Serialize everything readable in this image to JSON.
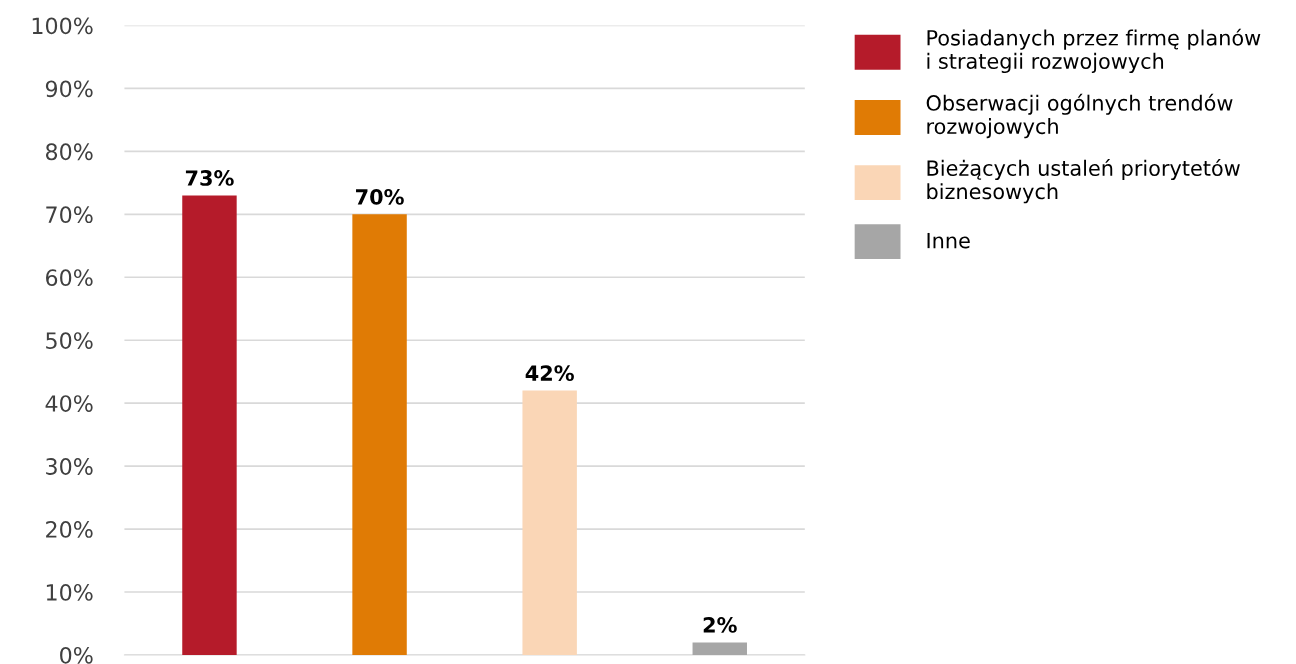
{
  "chart_data": {
    "type": "bar",
    "categories": [
      null,
      null,
      null,
      null
    ],
    "series": [
      {
        "name": "Posiadanych przez firmę planów\ni strategii rozwojowych",
        "color": "#b51b2a",
        "values": [
          73,
          null,
          null,
          null
        ],
        "value_labels": [
          "73%",
          null,
          null,
          null
        ]
      },
      {
        "name": "Obserwacji ogólnych trendów\nrozwojowych",
        "color": "#e07b05",
        "values": [
          null,
          70,
          null,
          null
        ],
        "value_labels": [
          null,
          "70%",
          null,
          null
        ]
      },
      {
        "name": "Bieżących ustaleń priorytetów\nbiznesowych",
        "color": "#fad6b6",
        "values": [
          null,
          null,
          42,
          null
        ],
        "value_labels": [
          null,
          null,
          "42%",
          null
        ]
      },
      {
        "name": "Inne",
        "color": "#a6a6a6",
        "values": [
          null,
          null,
          null,
          2
        ],
        "value_labels": [
          null,
          null,
          null,
          "2%"
        ]
      }
    ],
    "ylim": [
      0,
      100
    ],
    "yticks": [
      {
        "value": 0,
        "label": "0%"
      },
      {
        "value": 10,
        "label": "10%"
      },
      {
        "value": 20,
        "label": "20%"
      },
      {
        "value": 30,
        "label": "30%"
      },
      {
        "value": 40,
        "label": "40%"
      },
      {
        "value": 50,
        "label": "50%"
      },
      {
        "value": 60,
        "label": "60%"
      },
      {
        "value": 70,
        "label": "70%"
      },
      {
        "value": 80,
        "label": "80%"
      },
      {
        "value": 90,
        "label": "90%"
      },
      {
        "value": 100,
        "label": "100%"
      }
    ],
    "grid": "y",
    "legend": "right"
  }
}
